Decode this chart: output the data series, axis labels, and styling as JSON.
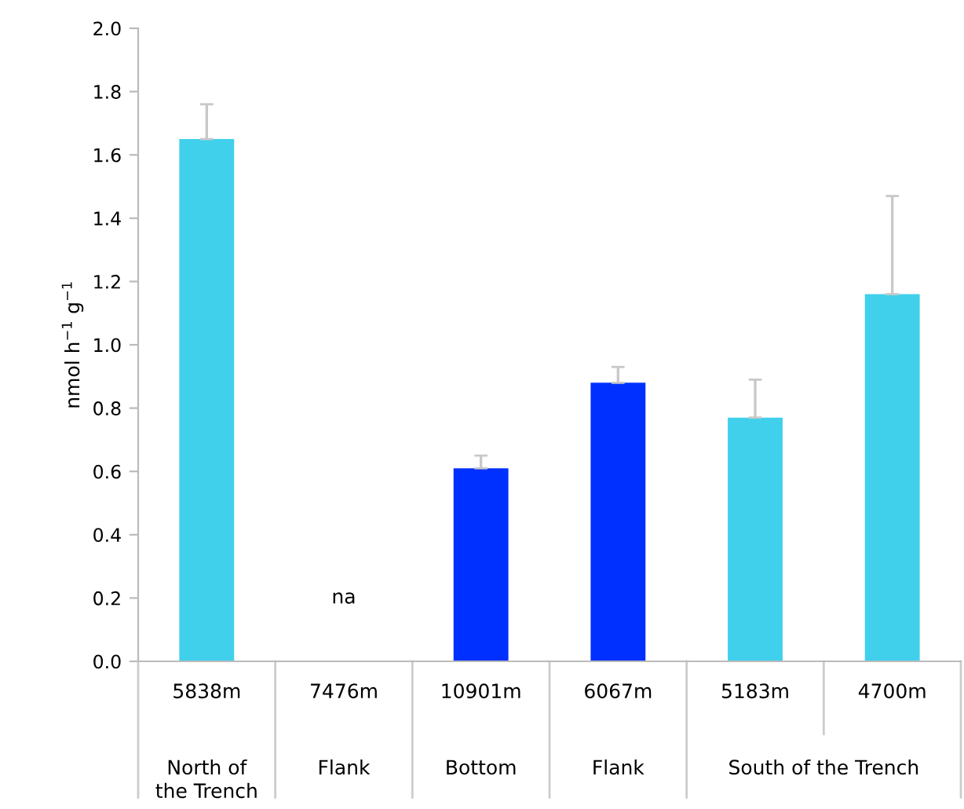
{
  "chart_data": {
    "type": "bar",
    "ylabel": "nmol h$^{−1}$ g$^{−1}$",
    "categories": [
      "5838m",
      "7476m",
      "10901m",
      "6067m",
      "5183m",
      "4700m"
    ],
    "values": [
      1.65,
      null,
      0.61,
      0.88,
      0.77,
      1.16
    ],
    "colors": [
      "#40d0ec",
      "#40d0ec",
      "#0030ff",
      "#0030ff",
      "#40d0ec",
      "#40d0ec"
    ],
    "errors": [
      [
        1.65,
        1.76
      ],
      null,
      [
        0.61,
        0.65
      ],
      [
        0.88,
        0.93
      ],
      [
        0.77,
        0.89
      ],
      [
        1.16,
        1.47
      ]
    ],
    "ylim": [
      0,
      2.0
    ],
    "yticks": [
      {
        "value": 0,
        "label": "0.0"
      },
      0.2,
      0.4,
      0.6,
      0.8,
      {
        "value": 1,
        "label": "1.0"
      },
      1.2,
      1.4,
      1.6,
      1.8,
      {
        "value": 2,
        "label": "2.0"
      }
    ],
    "grid": false,
    "annotations": [
      "na",
      "North of\nthe Trench",
      "Flank",
      "Bottom",
      "Flank",
      "South of the Trench"
    ]
  }
}
